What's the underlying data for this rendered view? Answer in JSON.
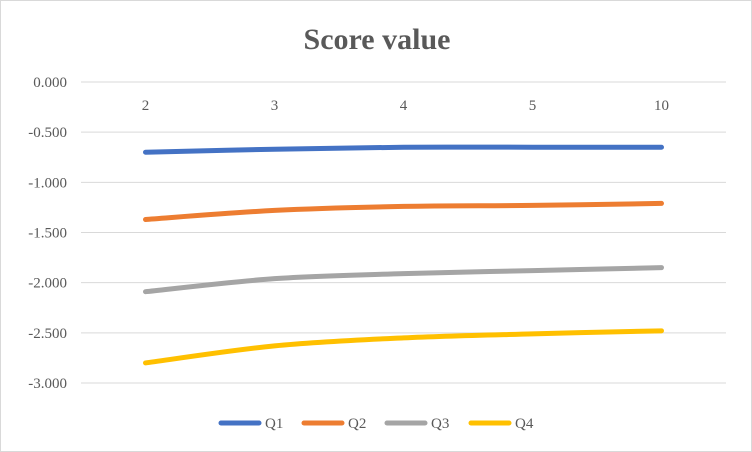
{
  "chart_data": {
    "type": "line",
    "title": "Score value",
    "xlabel": "",
    "ylabel": "",
    "categories": [
      "2",
      "3",
      "4",
      "5",
      "10"
    ],
    "ylim": [
      -3.0,
      0.0
    ],
    "y_ticks": [
      0.0,
      -0.5,
      -1.0,
      -1.5,
      -2.0,
      -2.5,
      -3.0
    ],
    "y_tick_labels": [
      "0.000",
      "-0.500",
      "-1.000",
      "-1.500",
      "-2.000",
      "-2.500",
      "-3.000"
    ],
    "x_axis_position": "top",
    "grid": true,
    "legend": "bottom",
    "series": [
      {
        "name": "Q1",
        "color": "#4472c4",
        "values": [
          -0.7,
          -0.67,
          -0.65,
          -0.65,
          -0.65
        ]
      },
      {
        "name": "Q2",
        "color": "#ed7d31",
        "values": [
          -1.37,
          -1.28,
          -1.24,
          -1.23,
          -1.21
        ]
      },
      {
        "name": "Q3",
        "color": "#a5a5a5",
        "values": [
          -2.09,
          -1.96,
          -1.91,
          -1.88,
          -1.85
        ]
      },
      {
        "name": "Q4",
        "color": "#ffc000",
        "values": [
          -2.8,
          -2.63,
          -2.55,
          -2.51,
          -2.48
        ]
      }
    ]
  }
}
